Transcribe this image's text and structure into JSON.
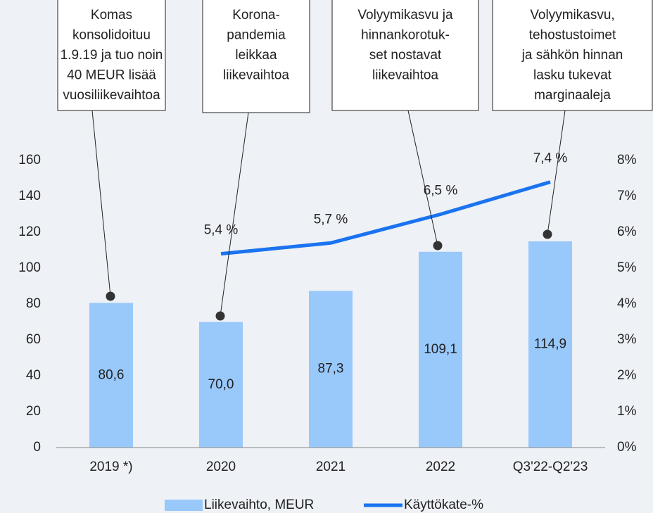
{
  "chart_data": {
    "type": "bar",
    "categories": [
      "2019 *)",
      "2020",
      "2021",
      "2022",
      "Q3'22-Q2'23"
    ],
    "series": [
      {
        "name": "Liikevaihto, MEUR",
        "type": "bar",
        "color": "#99c8fb",
        "values": [
          80.6,
          70.0,
          87.3,
          109.1,
          114.9
        ],
        "value_labels": [
          "80,6",
          "70,0",
          "87,3",
          "109,1",
          "114,9"
        ]
      },
      {
        "name": "Käyttökate-%",
        "type": "line",
        "axis": "y2",
        "color": "#1a73f0",
        "values": [
          null,
          5.4,
          5.7,
          6.5,
          7.4
        ],
        "value_labels": [
          null,
          "5,4 %",
          "5,7 %",
          "6,5 %",
          "7,4 %"
        ]
      }
    ],
    "ylim": [
      0,
      160
    ],
    "yticks": [
      0,
      20,
      40,
      60,
      80,
      100,
      120,
      140,
      160
    ],
    "y2lim": [
      0,
      8
    ],
    "y2ticks": [
      {
        "value": 0,
        "label": "0%"
      },
      {
        "value": 1,
        "label": "1%"
      },
      {
        "value": 2,
        "label": "2%"
      },
      {
        "value": 3,
        "label": "3%"
      },
      {
        "value": 4,
        "label": "4%"
      },
      {
        "value": 5,
        "label": "5%"
      },
      {
        "value": 6,
        "label": "6%"
      },
      {
        "value": 7,
        "label": "7%"
      },
      {
        "value": 8,
        "label": "8%"
      }
    ],
    "legend": "bottom",
    "annotations": [
      [
        "Komas",
        "konsolidoituu",
        "1.9.19 ja tuo noin",
        "40 MEUR lisää",
        "vuosiliikevaihtoa"
      ],
      [
        "Korona-",
        "pandemia",
        "leikkaa",
        "liikevaihtoa"
      ],
      [
        "Volyymikasvu ja",
        "hinnankorotuk-",
        "set nostavat",
        "liikevaihtoa"
      ],
      [
        "Volyymikasvu,",
        "tehostustoimet",
        "ja sähkön hinnan",
        "lasku tukevat",
        "marginaaleja"
      ]
    ]
  }
}
